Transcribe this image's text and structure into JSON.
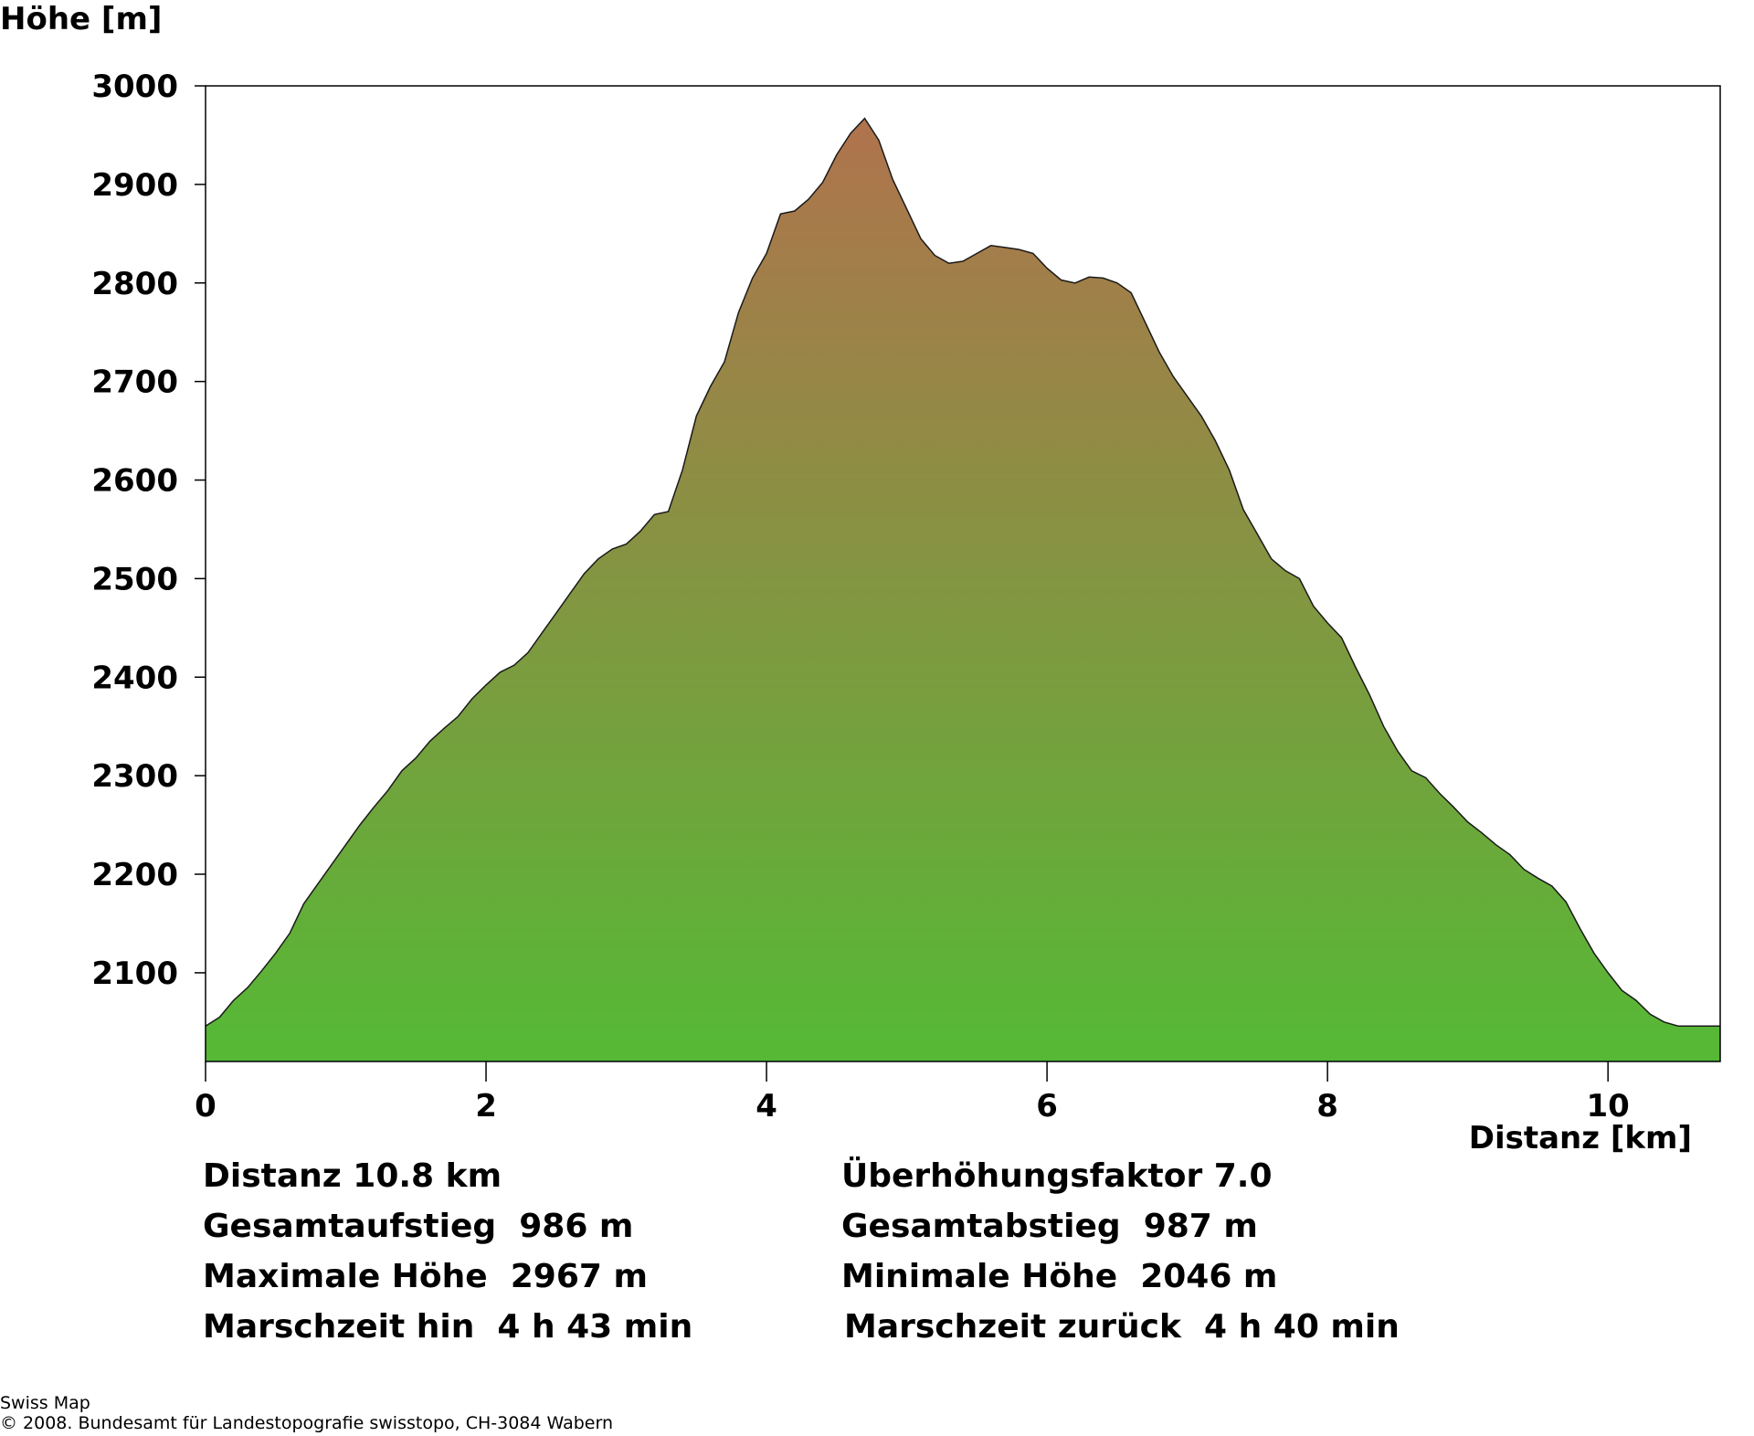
{
  "chart_data": {
    "type": "area",
    "ylabel": "Höhe [m]",
    "xlabel": "Distanz [km]",
    "xlim": [
      0,
      10.8
    ],
    "ylim": [
      2010,
      3000
    ],
    "x_ticks": [
      0,
      2,
      4,
      6,
      8,
      10
    ],
    "y_ticks": [
      2100,
      2200,
      2300,
      2400,
      2500,
      2600,
      2700,
      2800,
      2900,
      3000
    ],
    "grid": false,
    "fill_gradient": {
      "top": "#b0734d",
      "bottom": "#55b935"
    },
    "outline_color": "#1a1a1a",
    "points": [
      [
        0,
        2046
      ],
      [
        0.1,
        2055
      ],
      [
        0.2,
        2072
      ],
      [
        0.3,
        2085
      ],
      [
        0.4,
        2102
      ],
      [
        0.5,
        2120
      ],
      [
        0.6,
        2140
      ],
      [
        0.7,
        2170
      ],
      [
        0.8,
        2190
      ],
      [
        0.9,
        2210
      ],
      [
        1.0,
        2230
      ],
      [
        1.1,
        2250
      ],
      [
        1.2,
        2268
      ],
      [
        1.3,
        2285
      ],
      [
        1.4,
        2305
      ],
      [
        1.5,
        2318
      ],
      [
        1.6,
        2335
      ],
      [
        1.7,
        2348
      ],
      [
        1.8,
        2360
      ],
      [
        1.9,
        2378
      ],
      [
        2.0,
        2392
      ],
      [
        2.1,
        2405
      ],
      [
        2.2,
        2412
      ],
      [
        2.3,
        2425
      ],
      [
        2.4,
        2445
      ],
      [
        2.5,
        2465
      ],
      [
        2.6,
        2485
      ],
      [
        2.7,
        2505
      ],
      [
        2.8,
        2520
      ],
      [
        2.9,
        2530
      ],
      [
        3.0,
        2535
      ],
      [
        3.1,
        2548
      ],
      [
        3.2,
        2565
      ],
      [
        3.3,
        2568
      ],
      [
        3.4,
        2610
      ],
      [
        3.5,
        2665
      ],
      [
        3.6,
        2695
      ],
      [
        3.7,
        2720
      ],
      [
        3.8,
        2770
      ],
      [
        3.9,
        2805
      ],
      [
        4.0,
        2830
      ],
      [
        4.1,
        2870
      ],
      [
        4.2,
        2873
      ],
      [
        4.3,
        2885
      ],
      [
        4.4,
        2902
      ],
      [
        4.5,
        2930
      ],
      [
        4.6,
        2952
      ],
      [
        4.7,
        2967
      ],
      [
        4.8,
        2945
      ],
      [
        4.9,
        2905
      ],
      [
        5.0,
        2875
      ],
      [
        5.1,
        2845
      ],
      [
        5.2,
        2828
      ],
      [
        5.3,
        2820
      ],
      [
        5.4,
        2822
      ],
      [
        5.5,
        2830
      ],
      [
        5.6,
        2838
      ],
      [
        5.7,
        2836
      ],
      [
        5.8,
        2834
      ],
      [
        5.9,
        2830
      ],
      [
        6.0,
        2815
      ],
      [
        6.1,
        2803
      ],
      [
        6.2,
        2800
      ],
      [
        6.3,
        2806
      ],
      [
        6.4,
        2805
      ],
      [
        6.5,
        2800
      ],
      [
        6.6,
        2790
      ],
      [
        6.7,
        2760
      ],
      [
        6.8,
        2730
      ],
      [
        6.9,
        2705
      ],
      [
        7.0,
        2685
      ],
      [
        7.1,
        2665
      ],
      [
        7.2,
        2640
      ],
      [
        7.3,
        2610
      ],
      [
        7.4,
        2570
      ],
      [
        7.5,
        2545
      ],
      [
        7.6,
        2520
      ],
      [
        7.7,
        2508
      ],
      [
        7.8,
        2500
      ],
      [
        7.9,
        2472
      ],
      [
        8.0,
        2455
      ],
      [
        8.1,
        2440
      ],
      [
        8.2,
        2410
      ],
      [
        8.3,
        2382
      ],
      [
        8.4,
        2350
      ],
      [
        8.5,
        2325
      ],
      [
        8.6,
        2305
      ],
      [
        8.7,
        2298
      ],
      [
        8.8,
        2282
      ],
      [
        8.9,
        2268
      ],
      [
        9.0,
        2253
      ],
      [
        9.1,
        2242
      ],
      [
        9.2,
        2230
      ],
      [
        9.3,
        2220
      ],
      [
        9.4,
        2205
      ],
      [
        9.5,
        2196
      ],
      [
        9.6,
        2188
      ],
      [
        9.7,
        2172
      ],
      [
        9.8,
        2145
      ],
      [
        9.9,
        2120
      ],
      [
        10.0,
        2100
      ],
      [
        10.1,
        2082
      ],
      [
        10.2,
        2072
      ],
      [
        10.3,
        2058
      ],
      [
        10.4,
        2050
      ],
      [
        10.5,
        2046
      ]
    ]
  },
  "stats": {
    "distance": "Distanz 10.8 km",
    "exaggeration": "Überhöhungsfaktor 7.0",
    "ascent": "Gesamtaufstieg  986 m",
    "descent": "Gesamtabstieg  987 m",
    "max_height": "Maximale Höhe  2967 m",
    "min_height": "Minimale Höhe  2046 m",
    "time_there": "Marschzeit hin  4 h 43 min",
    "time_back": "Marschzeit zurück  4 h 40 min"
  },
  "footer": {
    "source": "Swiss Map",
    "copyright": "© 2008. Bundesamt für Landestopografie swisstopo, CH-3084 Wabern"
  }
}
